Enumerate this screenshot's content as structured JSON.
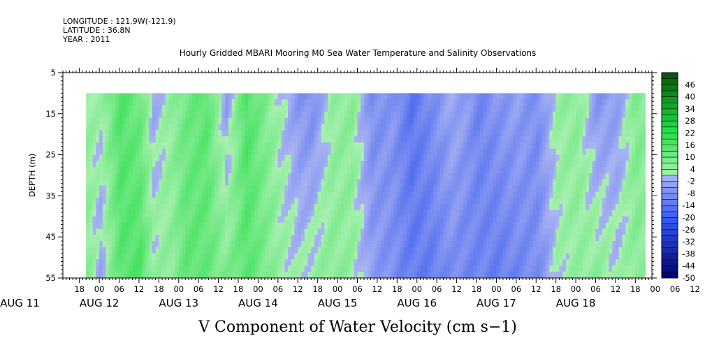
{
  "header": {
    "longitude": "LONGITUDE : 121.9W(-121.9)",
    "latitude": "LATITUDE : 36.8N",
    "year": "YEAR : 2011"
  },
  "chart_data": {
    "type": "heatmap",
    "title": "Hourly Gridded MBARI Mooring M0 Sea Water Temperature and Salinity Observations",
    "xlabel": "V Component of Water Velocity (cm s−1)",
    "ylabel": "DEPTH (m)",
    "ylim": [
      55,
      5
    ],
    "y_ticks": [
      5,
      15,
      25,
      35,
      45,
      55
    ],
    "data_depth_range": [
      10,
      55
    ],
    "x_range": [
      "2011-08-11T13:00",
      "2011-08-18T23:00"
    ],
    "x_data_range": [
      "2011-08-11T20:00",
      "2011-08-18T21:00"
    ],
    "x_hour_tick_labels": [
      "18",
      "00",
      "06",
      "12",
      "18",
      "00",
      "06",
      "12",
      "18",
      "00",
      "06",
      "12",
      "18",
      "00",
      "06",
      "12",
      "18",
      "00",
      "06",
      "12",
      "18",
      "00",
      "06",
      "12",
      "18",
      "00",
      "06",
      "12",
      "18",
      "00",
      "06",
      "12"
    ],
    "x_date_labels": [
      "AUG 11",
      "AUG 12",
      "AUG 13",
      "AUG 14",
      "AUG 15",
      "AUG 16",
      "AUG 17",
      "AUG 18"
    ],
    "colorbar_labels": [
      "46",
      "40",
      "34",
      "28",
      "22",
      "16",
      "10",
      "4",
      "-2",
      "-8",
      "-14",
      "-20",
      "-26",
      "-32",
      "-38",
      "-44",
      "-50"
    ],
    "colorbar_range": [
      -50,
      52
    ],
    "colorbar_step": 3,
    "colormap": {
      "negative_dark": "#000066",
      "negative_mid": "#3355ee",
      "negative_light": "#aab4f2",
      "positive_light": "#a8f0b0",
      "positive_mid": "#22dd44",
      "positive_dark": "#005500"
    },
    "velocity_profile": {
      "time_hours_from_aug11_00": [
        20,
        24,
        30,
        36,
        40,
        46,
        50,
        56,
        62,
        68,
        72,
        78,
        84,
        88,
        94,
        100,
        106,
        112,
        118,
        124,
        130,
        134,
        138,
        144,
        150,
        156,
        162,
        168,
        174,
        180,
        186,
        189
      ],
      "surface_v": [
        4,
        3,
        16,
        10,
        -2,
        6,
        10,
        14,
        -4,
        16,
        10,
        2,
        -6,
        -8,
        4,
        6,
        -8,
        -6,
        -14,
        -8,
        -2,
        -4,
        -10,
        -6,
        -4,
        -8,
        4,
        6,
        -6,
        -4,
        8,
        6
      ],
      "bottom_v": [
        6,
        -2,
        14,
        16,
        4,
        6,
        14,
        12,
        8,
        14,
        10,
        4,
        2,
        4,
        6,
        4,
        -4,
        -8,
        -12,
        -12,
        -8,
        -10,
        -10,
        -12,
        -10,
        -8,
        2,
        4,
        6,
        2,
        6,
        4
      ]
    }
  }
}
